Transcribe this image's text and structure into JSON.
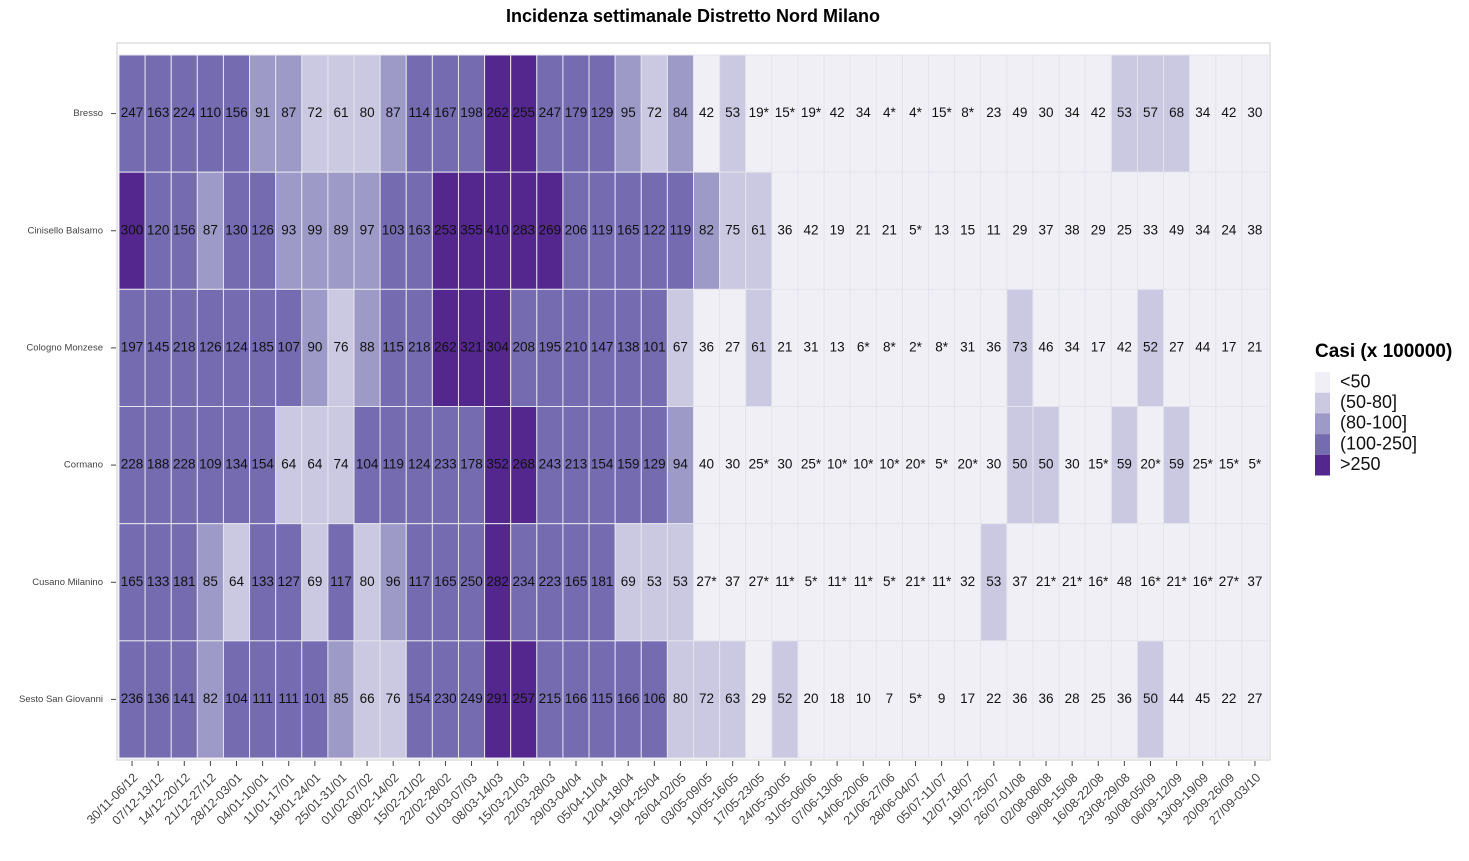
{
  "chart_data": {
    "type": "heatmap",
    "title": "Incidenza settimanale Distretto Nord Milano",
    "x": [
      "30/11-06/12",
      "07/12-13/12",
      "14/12-20/12",
      "21/12-27/12",
      "28/12-03/01",
      "04/01-10/01",
      "11/01-17/01",
      "18/01-24/01",
      "25/01-31/01",
      "01/02-07/02",
      "08/02-14/02",
      "15/02-21/02",
      "22/02-28/02",
      "01/03-07/03",
      "08/03-14/03",
      "15/03-21/03",
      "22/03-28/03",
      "29/03-04/04",
      "05/04-11/04",
      "12/04-18/04",
      "19/04-25/04",
      "26/04-02/05",
      "03/05-09/05",
      "10/05-16/05",
      "17/05-23/05",
      "24/05-30/05",
      "31/05-06/06",
      "07/06-13/06",
      "14/06-20/06",
      "21/06-27/06",
      "28/06-04/07",
      "05/07-11/07",
      "12/07-18/07",
      "19/07-25/07",
      "26/07-01/08",
      "02/08-08/08",
      "09/08-15/08",
      "16/08-22/08",
      "23/08-29/08",
      "30/08-05/09",
      "06/09-12/09",
      "13/09-19/09",
      "20/09-26/09",
      "27/09-03/10"
    ],
    "y": [
      "Bresso",
      "Cinisello Balsamo",
      "Cologno Monzese",
      "Cormano",
      "Cusano Milanino",
      "Sesto San Giovanni"
    ],
    "values": [
      [
        247,
        163,
        224,
        110,
        156,
        91,
        87,
        72,
        61,
        80,
        87,
        114,
        167,
        198,
        262,
        255,
        247,
        179,
        129,
        95,
        72,
        84,
        42,
        53,
        19,
        15,
        19,
        42,
        34,
        4,
        4,
        15,
        8,
        23,
        49,
        30,
        34,
        42,
        53,
        57,
        68,
        34,
        42,
        30
      ],
      [
        300,
        120,
        156,
        87,
        130,
        126,
        93,
        99,
        89,
        97,
        103,
        163,
        253,
        355,
        410,
        283,
        269,
        206,
        119,
        165,
        122,
        119,
        82,
        75,
        61,
        36,
        42,
        19,
        21,
        21,
        5,
        13,
        15,
        11,
        29,
        37,
        38,
        29,
        25,
        33,
        49,
        34,
        24,
        38
      ],
      [
        197,
        145,
        218,
        126,
        124,
        185,
        107,
        90,
        76,
        88,
        115,
        218,
        262,
        321,
        304,
        208,
        195,
        210,
        147,
        138,
        101,
        67,
        36,
        27,
        61,
        21,
        31,
        13,
        6,
        8,
        2,
        8,
        31,
        36,
        73,
        46,
        34,
        17,
        42,
        52,
        27,
        44,
        17,
        21
      ],
      [
        228,
        188,
        228,
        109,
        134,
        154,
        64,
        64,
        74,
        104,
        119,
        124,
        233,
        178,
        352,
        268,
        243,
        213,
        154,
        159,
        129,
        94,
        40,
        30,
        25,
        30,
        25,
        10,
        10,
        10,
        20,
        5,
        20,
        30,
        50,
        50,
        30,
        15,
        59,
        20,
        59,
        25,
        15,
        5
      ],
      [
        165,
        133,
        181,
        85,
        64,
        133,
        127,
        69,
        117,
        80,
        96,
        117,
        165,
        250,
        282,
        234,
        223,
        165,
        181,
        69,
        53,
        53,
        27,
        37,
        27,
        11,
        5,
        11,
        11,
        5,
        21,
        11,
        32,
        53,
        37,
        21,
        21,
        16,
        48,
        16,
        21,
        16,
        27,
        37
      ],
      [
        236,
        136,
        141,
        82,
        104,
        111,
        111,
        101,
        85,
        66,
        76,
        154,
        230,
        249,
        291,
        257,
        215,
        166,
        115,
        166,
        106,
        80,
        72,
        63,
        29,
        52,
        20,
        18,
        10,
        7,
        5,
        9,
        17,
        22,
        36,
        36,
        28,
        25,
        36,
        50,
        44,
        45,
        22,
        27
      ]
    ],
    "value_labels": [
      [
        "247",
        "163",
        "224",
        "110",
        "156",
        "91",
        "87",
        "72",
        "61",
        "80",
        "87",
        "114",
        "167",
        "198",
        "262",
        "255",
        "247",
        "179",
        "129",
        "95",
        "72",
        "84",
        "42",
        "53",
        "19*",
        "15*",
        "19*",
        "42",
        "34",
        "4*",
        "4*",
        "15*",
        "8*",
        "23",
        "49",
        "30",
        "34",
        "42",
        "53",
        "57",
        "68",
        "34",
        "42",
        "30"
      ],
      [
        "300",
        "120",
        "156",
        "87",
        "130",
        "126",
        "93",
        "99",
        "89",
        "97",
        "103",
        "163",
        "253",
        "355",
        "410",
        "283",
        "269",
        "206",
        "119",
        "165",
        "122",
        "119",
        "82",
        "75",
        "61",
        "36",
        "42",
        "19",
        "21",
        "21",
        "5*",
        "13",
        "15",
        "11",
        "29",
        "37",
        "38",
        "29",
        "25",
        "33",
        "49",
        "34",
        "24",
        "38"
      ],
      [
        "197",
        "145",
        "218",
        "126",
        "124",
        "185",
        "107",
        "90",
        "76",
        "88",
        "115",
        "218",
        "262",
        "321",
        "304",
        "208",
        "195",
        "210",
        "147",
        "138",
        "101",
        "67",
        "36",
        "27",
        "61",
        "21",
        "31",
        "13",
        "6*",
        "8*",
        "2*",
        "8*",
        "31",
        "36",
        "73",
        "46",
        "34",
        "17",
        "42",
        "52",
        "27",
        "44",
        "17",
        "21"
      ],
      [
        "228",
        "188",
        "228",
        "109",
        "134",
        "154",
        "64",
        "64",
        "74",
        "104",
        "119",
        "124",
        "233",
        "178",
        "352",
        "268",
        "243",
        "213",
        "154",
        "159",
        "129",
        "94",
        "40",
        "30",
        "25*",
        "30",
        "25*",
        "10*",
        "10*",
        "10*",
        "20*",
        "5*",
        "20*",
        "30",
        "50",
        "50",
        "30",
        "15*",
        "59",
        "20*",
        "59",
        "25*",
        "15*",
        "5*"
      ],
      [
        "165",
        "133",
        "181",
        "85",
        "64",
        "133",
        "127",
        "69",
        "117",
        "80",
        "96",
        "117",
        "165",
        "250",
        "282",
        "234",
        "223",
        "165",
        "181",
        "69",
        "53",
        "53",
        "27*",
        "37",
        "27*",
        "11*",
        "5*",
        "11*",
        "11*",
        "5*",
        "21*",
        "11*",
        "32",
        "53",
        "37",
        "21*",
        "21*",
        "16*",
        "48",
        "16*",
        "21*",
        "16*",
        "27*",
        "37"
      ],
      [
        "236",
        "136",
        "141",
        "82",
        "104",
        "111",
        "111",
        "101",
        "85",
        "66",
        "76",
        "154",
        "230",
        "249",
        "291",
        "257",
        "215",
        "166",
        "115",
        "166",
        "106",
        "80",
        "72",
        "63",
        "29",
        "52",
        "20",
        "18",
        "10",
        "7",
        "5*",
        "9",
        "17",
        "22",
        "36",
        "36",
        "28",
        "25",
        "36",
        "50",
        "44",
        "45",
        "22",
        "27"
      ]
    ],
    "color_breaks": [
      50,
      80,
      100,
      250
    ],
    "legend": {
      "title": "Casi (x 100000)",
      "labels": [
        "<50",
        "(50-80]",
        "(80-100]",
        "(100-250]",
        ">250"
      ],
      "colors": [
        "#f0eff6",
        "#cbc9e2",
        "#9e9ac8",
        "#756bb1",
        "#54278f"
      ]
    }
  }
}
